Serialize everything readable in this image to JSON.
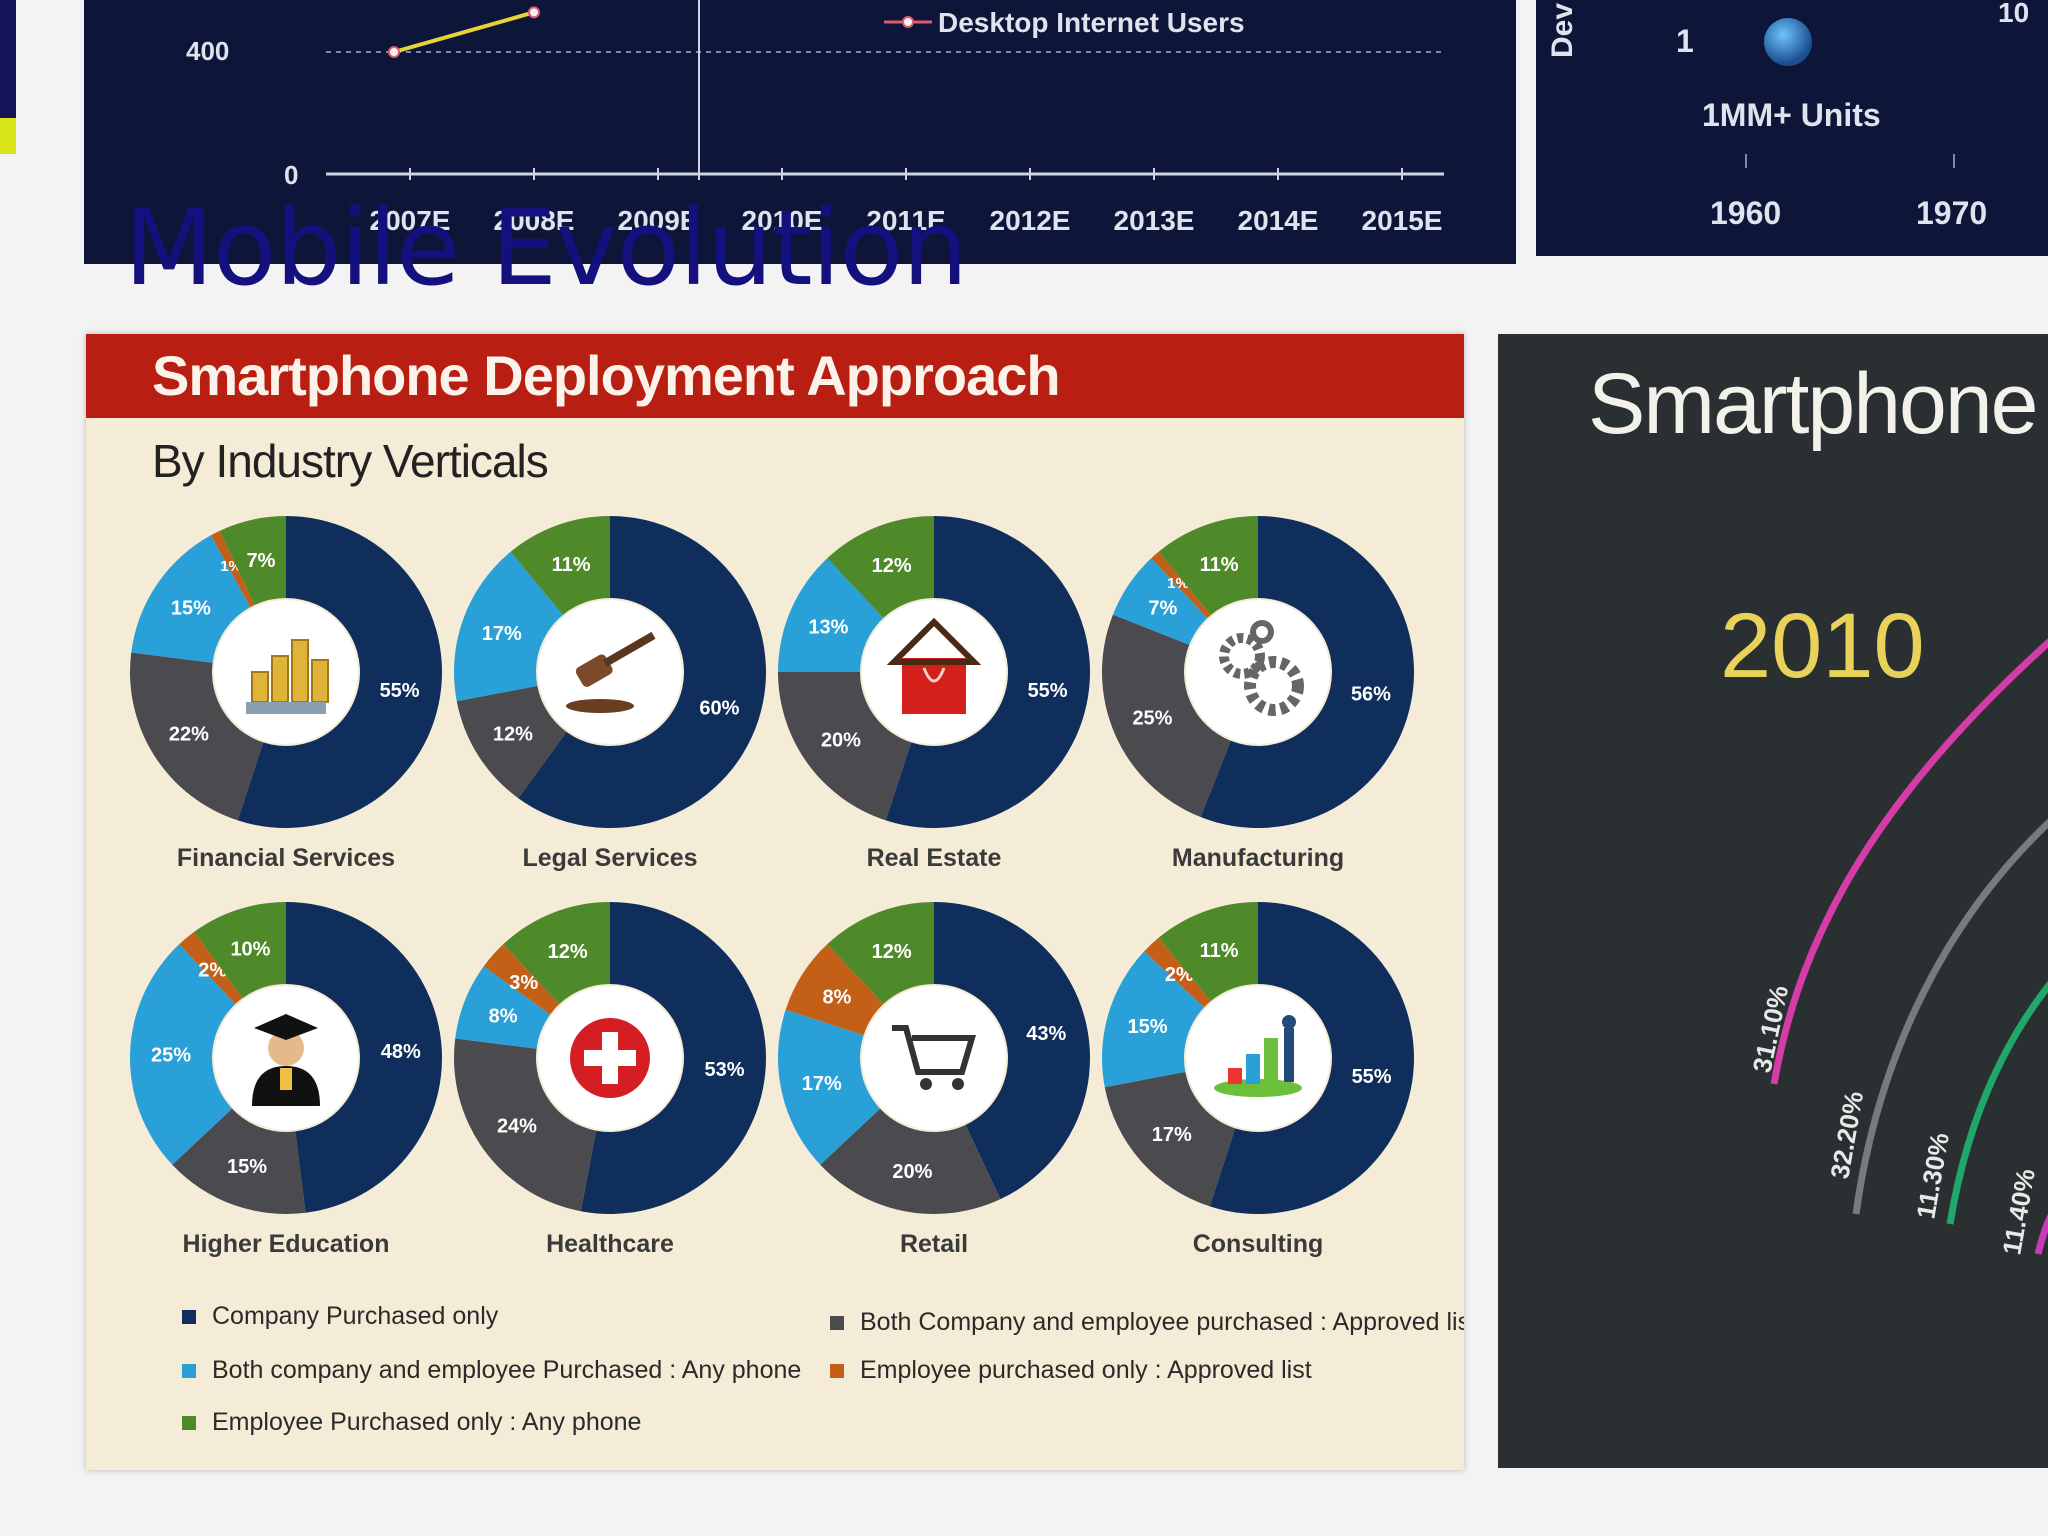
{
  "page": {
    "title": "Mobile Evolution"
  },
  "colors": {
    "company_only": "#0f2e5c",
    "both_any": "#2aa0d8",
    "employee_any": "#4f8a2a",
    "both_approved": "#4b4b4f",
    "employee_approved": "#c45f18"
  },
  "top_left_chart": {
    "legend_label": "Desktop Internet Users",
    "y_ticks": [
      "400",
      "0"
    ],
    "x_ticks": [
      "2007E",
      "2008E",
      "2009E",
      "2010E",
      "2011E",
      "2012E",
      "2013E",
      "2014E",
      "2015E"
    ]
  },
  "top_right_chart": {
    "axis_fragment": "Dev",
    "y_value": "1",
    "label": "1MM+ Units",
    "corner_fragment": "10",
    "x_ticks": [
      "1960",
      "1970"
    ]
  },
  "deployment": {
    "title": "Smartphone Deployment Approach",
    "subtitle": "By Industry Verticals",
    "legend": [
      {
        "label": "Company Purchased only",
        "color": "#0f2e5c"
      },
      {
        "label": "Both company and employee Purchased : Any phone",
        "color": "#2aa0d8"
      },
      {
        "label": "Employee Purchased only : Any phone",
        "color": "#4f8a2a"
      },
      {
        "label": "Both Company and employee purchased : Approved list",
        "color": "#4b4b4f"
      },
      {
        "label": "Employee purchased only : Approved list",
        "color": "#c45f18"
      }
    ]
  },
  "share_panel": {
    "title": "Smartphone p",
    "year": "2010",
    "arc_labels": [
      "31.10%",
      "32.20%",
      "11.30%",
      "11.40%"
    ]
  },
  "chart_data": [
    {
      "type": "line",
      "series": [
        {
          "name": "Desktop Internet Users",
          "x": [
            "2007E",
            "2008E"
          ],
          "y": [
            400,
            530
          ]
        }
      ],
      "x_categories": [
        "2007E",
        "2008E",
        "2009E",
        "2010E",
        "2011E",
        "2012E",
        "2013E",
        "2014E",
        "2015E"
      ],
      "y_ticks": [
        0,
        400
      ]
    },
    {
      "type": "pie",
      "title": "Smartphone Deployment Approach",
      "subtitle": "By Industry Verticals",
      "categories": [
        "Company Purchased only",
        "Both Company and employee purchased : Approved list",
        "Both company and employee Purchased : Any phone",
        "Employee purchased only : Approved list",
        "Employee Purchased only : Any phone"
      ],
      "series": [
        {
          "name": "Financial Services",
          "values": [
            55,
            22,
            15,
            1,
            7
          ],
          "labels": [
            "55%",
            "22%",
            "15%",
            "1%",
            "7%"
          ]
        },
        {
          "name": "Legal Services",
          "values": [
            60,
            12,
            17,
            0,
            11
          ],
          "labels": [
            "60%",
            "12%",
            "17%",
            "",
            "11%"
          ]
        },
        {
          "name": "Real Estate",
          "values": [
            55,
            20,
            13,
            0,
            12
          ],
          "labels": [
            "55%",
            "20%",
            "13%",
            "",
            "12%"
          ]
        },
        {
          "name": "Manufacturing",
          "values": [
            56,
            25,
            7,
            1,
            11
          ],
          "labels": [
            "56%",
            "25%",
            "7%",
            "1%",
            "11%"
          ]
        },
        {
          "name": "Higher Education",
          "values": [
            48,
            15,
            25,
            2,
            10
          ],
          "labels": [
            "48%",
            "15%",
            "25%",
            "2%",
            "10%"
          ]
        },
        {
          "name": "Healthcare",
          "values": [
            53,
            24,
            8,
            3,
            12
          ],
          "labels": [
            "53%",
            "24%",
            "8%",
            "3%",
            "12%"
          ]
        },
        {
          "name": "Retail",
          "values": [
            43,
            20,
            17,
            8,
            12
          ],
          "labels": [
            "43%",
            "20%",
            "17%",
            "8%",
            "12%"
          ]
        },
        {
          "name": "Consulting",
          "values": [
            55,
            17,
            15,
            2,
            11
          ],
          "labels": [
            "55%",
            "17%",
            "15%",
            "2%",
            "11%"
          ]
        }
      ]
    }
  ]
}
